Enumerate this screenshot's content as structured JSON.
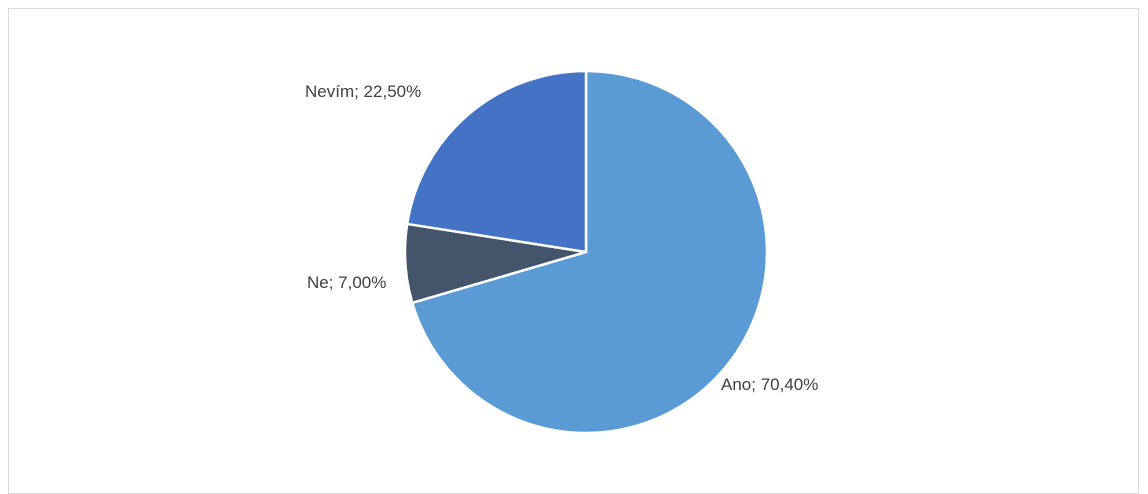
{
  "chart_data": {
    "type": "pie",
    "title": "",
    "slices": [
      {
        "name": "Ano",
        "value": 70.4,
        "label": "Ano; 70,40%",
        "color": "#5b9bd5"
      },
      {
        "name": "Ne",
        "value": 7.0,
        "label": "Ne; 7,00%",
        "color": "#44546a"
      },
      {
        "name": "Nevím",
        "value": 22.5,
        "label": "Nevím; 22,50%",
        "color": "#4472c4"
      }
    ],
    "legend": "none",
    "start_angle_deg": 0,
    "direction": "clockwise"
  }
}
